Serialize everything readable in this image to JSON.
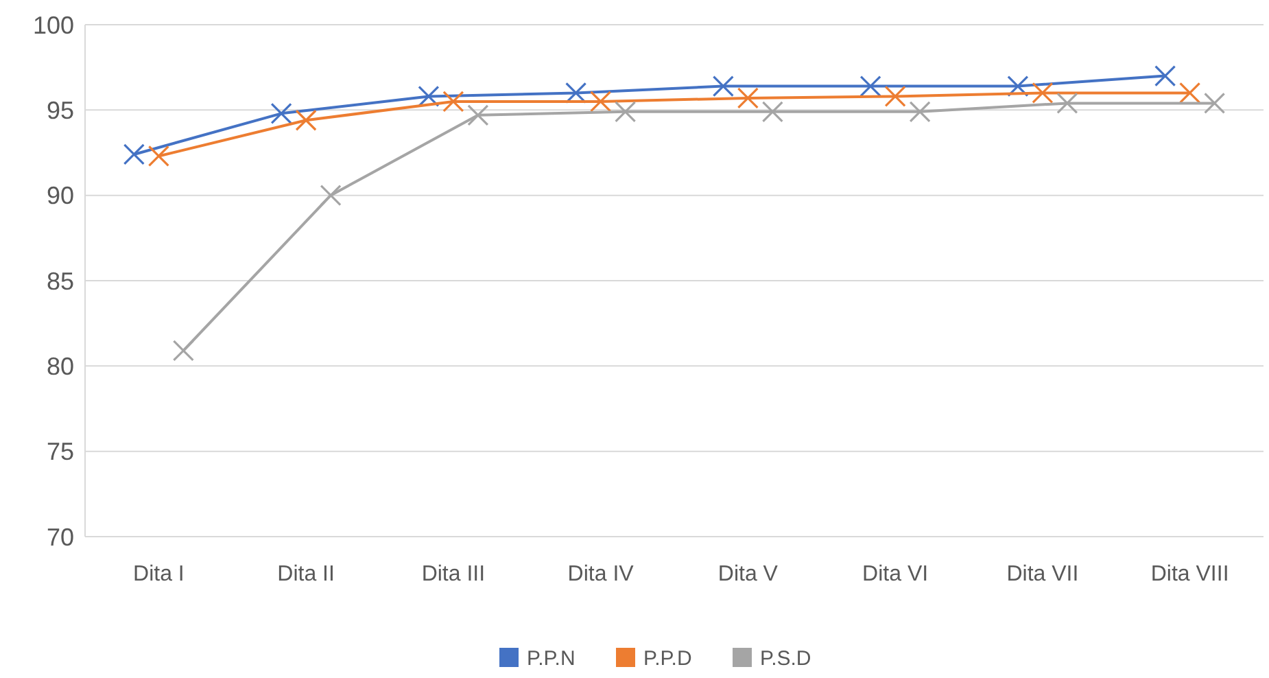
{
  "chart_data": {
    "type": "line",
    "categories": [
      "Dita I",
      "Dita II",
      "Dita III",
      "Dita IV",
      "Dita V",
      "Dita VI",
      "Dita VII",
      "Dita VIII"
    ],
    "series": [
      {
        "name": "P.P.N",
        "color": "#4472c4",
        "values": [
          92.4,
          94.8,
          95.8,
          96.0,
          96.4,
          96.4,
          96.4,
          97.0
        ]
      },
      {
        "name": "P.P.D",
        "color": "#ed7d31",
        "values": [
          92.3,
          94.4,
          95.5,
          95.5,
          95.7,
          95.8,
          96.0,
          96.0
        ]
      },
      {
        "name": "P.S.D",
        "color": "#a5a5a5",
        "values": [
          80.9,
          90.0,
          94.7,
          94.9,
          94.9,
          94.9,
          95.4,
          95.4
        ]
      }
    ],
    "ylim": [
      70,
      100
    ],
    "yticks": [
      70,
      75,
      80,
      85,
      90,
      95,
      100
    ],
    "grid": "y",
    "legend": "bottom",
    "marker": "cross",
    "line_style": "solid"
  }
}
